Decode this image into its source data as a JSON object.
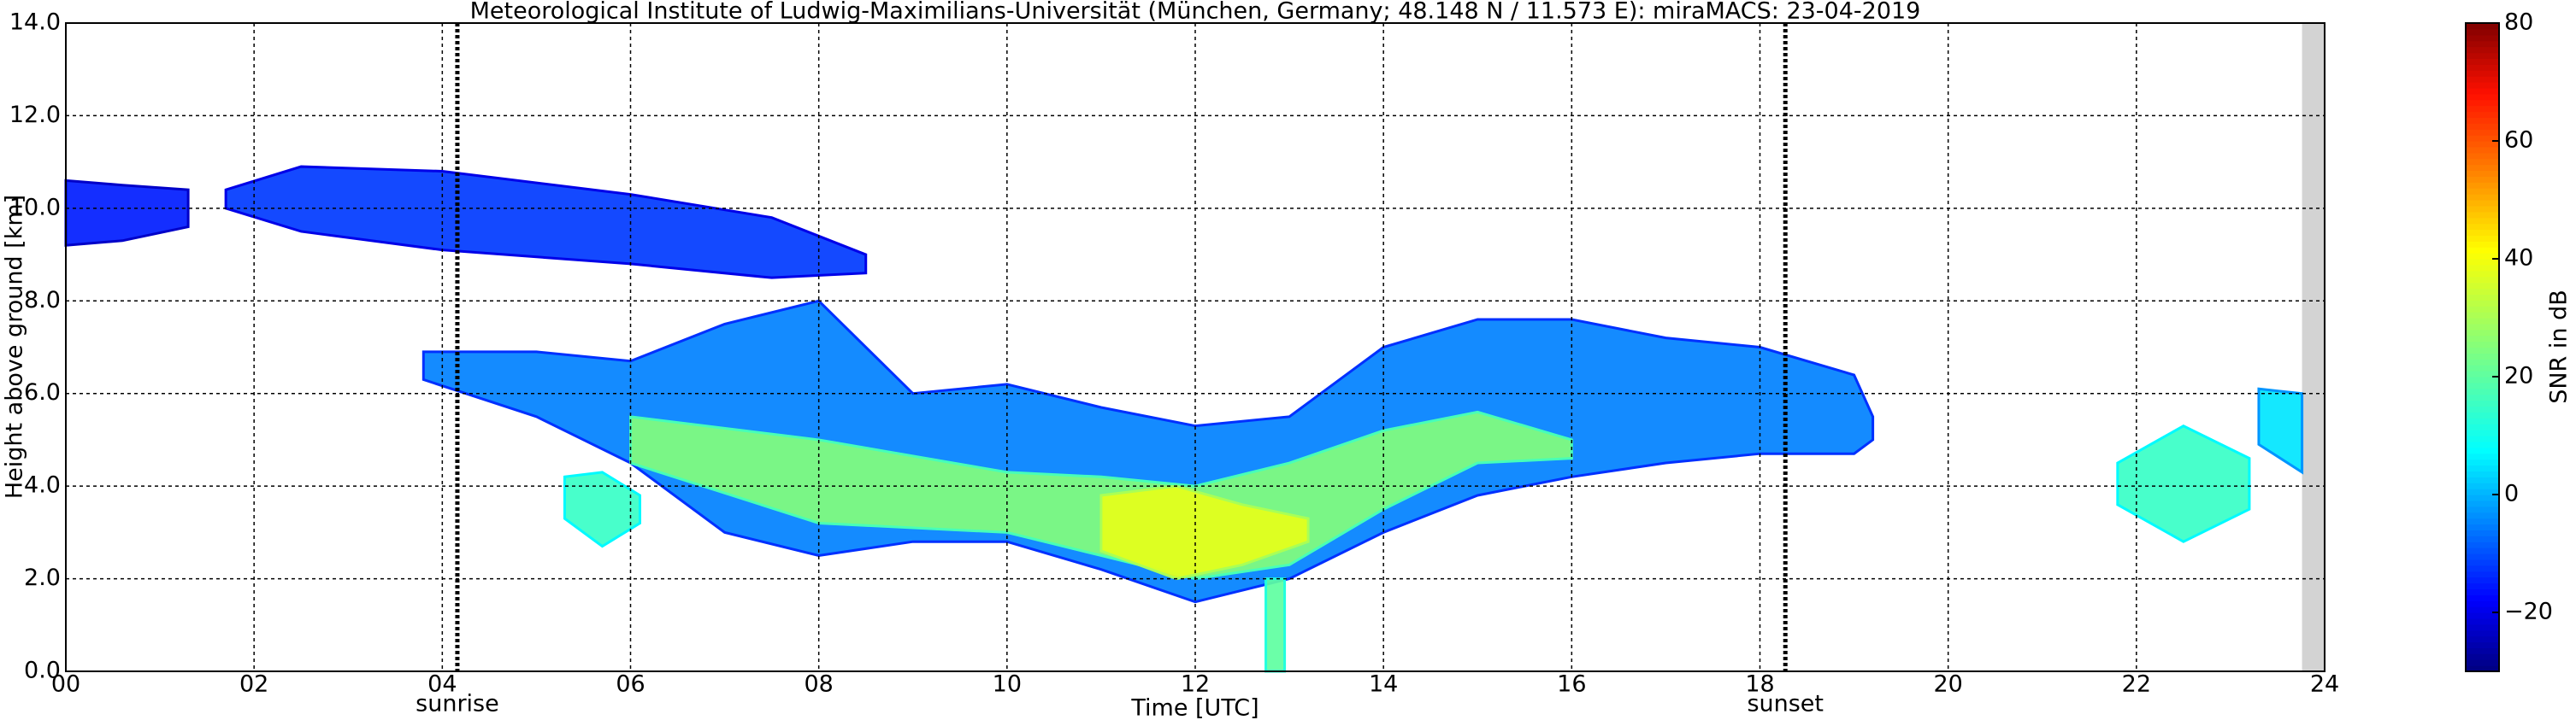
{
  "chart_data": {
    "type": "heatmap",
    "title": "Meteorological Institute of Ludwig-Maximilians-Universität (München, Germany; 48.148 N / 11.573 E):    miraMACS: 23-04-2019",
    "x_label": "Time [UTC]",
    "y_label": "Height above ground [km]",
    "colorbar_label": "SNR in dB",
    "xlim": [
      0,
      24
    ],
    "ylim": [
      0,
      14
    ],
    "xticks": [
      {
        "value": 0,
        "label": "00"
      },
      {
        "value": 2,
        "label": "02"
      },
      {
        "value": 4,
        "label": "04"
      },
      {
        "value": 6,
        "label": "06"
      },
      {
        "value": 8,
        "label": "08"
      },
      {
        "value": 10,
        "label": "10"
      },
      {
        "value": 12,
        "label": "12"
      },
      {
        "value": 14,
        "label": "14"
      },
      {
        "value": 16,
        "label": "16"
      },
      {
        "value": 18,
        "label": "18"
      },
      {
        "value": 20,
        "label": "20"
      },
      {
        "value": 22,
        "label": "22"
      },
      {
        "value": 24,
        "label": "24"
      }
    ],
    "yticks": [
      {
        "value": 0,
        "label": "0.0"
      },
      {
        "value": 2,
        "label": "2.0"
      },
      {
        "value": 4,
        "label": "4.0"
      },
      {
        "value": 6,
        "label": "6.0"
      },
      {
        "value": 8,
        "label": "8.0"
      },
      {
        "value": 10,
        "label": "10.0"
      },
      {
        "value": 12,
        "label": "12.0"
      },
      {
        "value": 14,
        "label": "14.0"
      }
    ],
    "grid": true,
    "clim": [
      -30,
      80
    ],
    "cticks": [
      {
        "value": -20,
        "label": "−20"
      },
      0,
      20,
      40,
      60,
      80
    ],
    "colormap": [
      [
        -30,
        "#00007f"
      ],
      [
        -17.8,
        "#0000ff"
      ],
      [
        7.5,
        "#00ffff"
      ],
      [
        41.5,
        "#ffff00"
      ],
      [
        55,
        "#ff8000"
      ],
      [
        68,
        "#ff1000"
      ],
      [
        80,
        "#800000"
      ]
    ],
    "events": [
      {
        "name": "sunrise",
        "x": 4.16
      },
      {
        "name": "sunset",
        "x": 18.27
      }
    ],
    "no_data": [
      23.76,
      24
    ],
    "layers": [
      {
        "snr": -15,
        "x": [
          0,
          0.6,
          1.3
        ],
        "top": [
          10.6,
          10.5,
          10.4
        ],
        "bottom": [
          9.2,
          9.3,
          9.6
        ]
      },
      {
        "snr": -12,
        "x": [
          1.7,
          2.5,
          4,
          6,
          7.5,
          8.5
        ],
        "top": [
          10.4,
          10.9,
          10.8,
          10.3,
          9.8,
          9.0
        ],
        "bottom": [
          10.0,
          9.5,
          9.1,
          8.8,
          8.5,
          8.6
        ]
      },
      {
        "snr": -5,
        "x": [
          3.8,
          5,
          6,
          7,
          8,
          9,
          10,
          11,
          12,
          13,
          14,
          15,
          16,
          17,
          18,
          19,
          19.2
        ],
        "top": [
          6.9,
          6.9,
          6.7,
          7.5,
          8.0,
          6.0,
          6.2,
          5.7,
          5.3,
          5.5,
          7.0,
          7.6,
          7.6,
          7.2,
          7.0,
          6.4,
          5.5
        ],
        "bottom": [
          6.3,
          5.5,
          4.5,
          3.0,
          2.5,
          2.8,
          2.8,
          2.2,
          1.5,
          2.0,
          3.0,
          3.8,
          4.2,
          4.5,
          4.7,
          4.7,
          5.0
        ]
      },
      {
        "snr": 15,
        "x": [
          5.3,
          5.7,
          6.1
        ],
        "top": [
          4.2,
          4.3,
          3.8
        ],
        "bottom": [
          3.3,
          2.7,
          3.2
        ]
      },
      {
        "snr": 25,
        "x": [
          6,
          8,
          10,
          11,
          12,
          13,
          14,
          15,
          16
        ],
        "top": [
          5.5,
          5.0,
          4.3,
          4.2,
          4.0,
          4.5,
          5.2,
          5.6,
          5.0
        ],
        "bottom": [
          4.5,
          3.2,
          3.0,
          2.5,
          2.0,
          2.3,
          3.5,
          4.5,
          4.6
        ]
      },
      {
        "snr": 38,
        "x": [
          11,
          11.8,
          12.5,
          13.2
        ],
        "top": [
          3.8,
          4.0,
          3.6,
          3.3
        ],
        "bottom": [
          2.6,
          2.0,
          2.3,
          2.8
        ]
      },
      {
        "snr": 20,
        "x": [
          12.75,
          12.95
        ],
        "top": [
          2.0,
          2.0
        ],
        "bottom": [
          0,
          0
        ]
      },
      {
        "snr": 15,
        "x": [
          21.8,
          22.5,
          23.2
        ],
        "top": [
          4.5,
          5.3,
          4.6
        ],
        "bottom": [
          3.6,
          2.8,
          3.5
        ]
      },
      {
        "snr": 5,
        "x": [
          23.3,
          23.76
        ],
        "top": [
          6.1,
          6.0
        ],
        "bottom": [
          4.9,
          4.3
        ]
      }
    ]
  }
}
